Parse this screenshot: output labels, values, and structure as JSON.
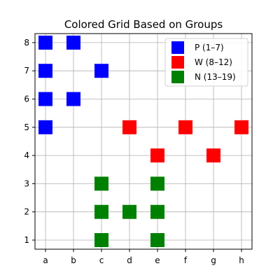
{
  "chart_data": {
    "type": "scatter",
    "title": "Colored Grid Based on Groups",
    "xlabel": "",
    "ylabel": "",
    "x_categories": [
      "a",
      "b",
      "c",
      "d",
      "e",
      "f",
      "g",
      "h"
    ],
    "y_categories": [
      "1",
      "2",
      "3",
      "4",
      "5",
      "6",
      "7",
      "8"
    ],
    "grid": true,
    "legend_position": "top-right",
    "marker": "square",
    "series": [
      {
        "name": "P (1–7)",
        "color": "#0000ff",
        "points": [
          {
            "x": "a",
            "y": "8"
          },
          {
            "x": "b",
            "y": "8"
          },
          {
            "x": "a",
            "y": "7"
          },
          {
            "x": "c",
            "y": "7"
          },
          {
            "x": "a",
            "y": "6"
          },
          {
            "x": "b",
            "y": "6"
          },
          {
            "x": "a",
            "y": "5"
          }
        ]
      },
      {
        "name": "W (8–12)",
        "color": "#ff0000",
        "points": [
          {
            "x": "d",
            "y": "5"
          },
          {
            "x": "f",
            "y": "5"
          },
          {
            "x": "h",
            "y": "5"
          },
          {
            "x": "e",
            "y": "4"
          },
          {
            "x": "g",
            "y": "4"
          }
        ]
      },
      {
        "name": "N (13–19)",
        "color": "#008000",
        "points": [
          {
            "x": "c",
            "y": "3"
          },
          {
            "x": "e",
            "y": "3"
          },
          {
            "x": "c",
            "y": "2"
          },
          {
            "x": "d",
            "y": "2"
          },
          {
            "x": "e",
            "y": "2"
          },
          {
            "x": "c",
            "y": "1"
          },
          {
            "x": "e",
            "y": "1"
          }
        ]
      }
    ]
  }
}
